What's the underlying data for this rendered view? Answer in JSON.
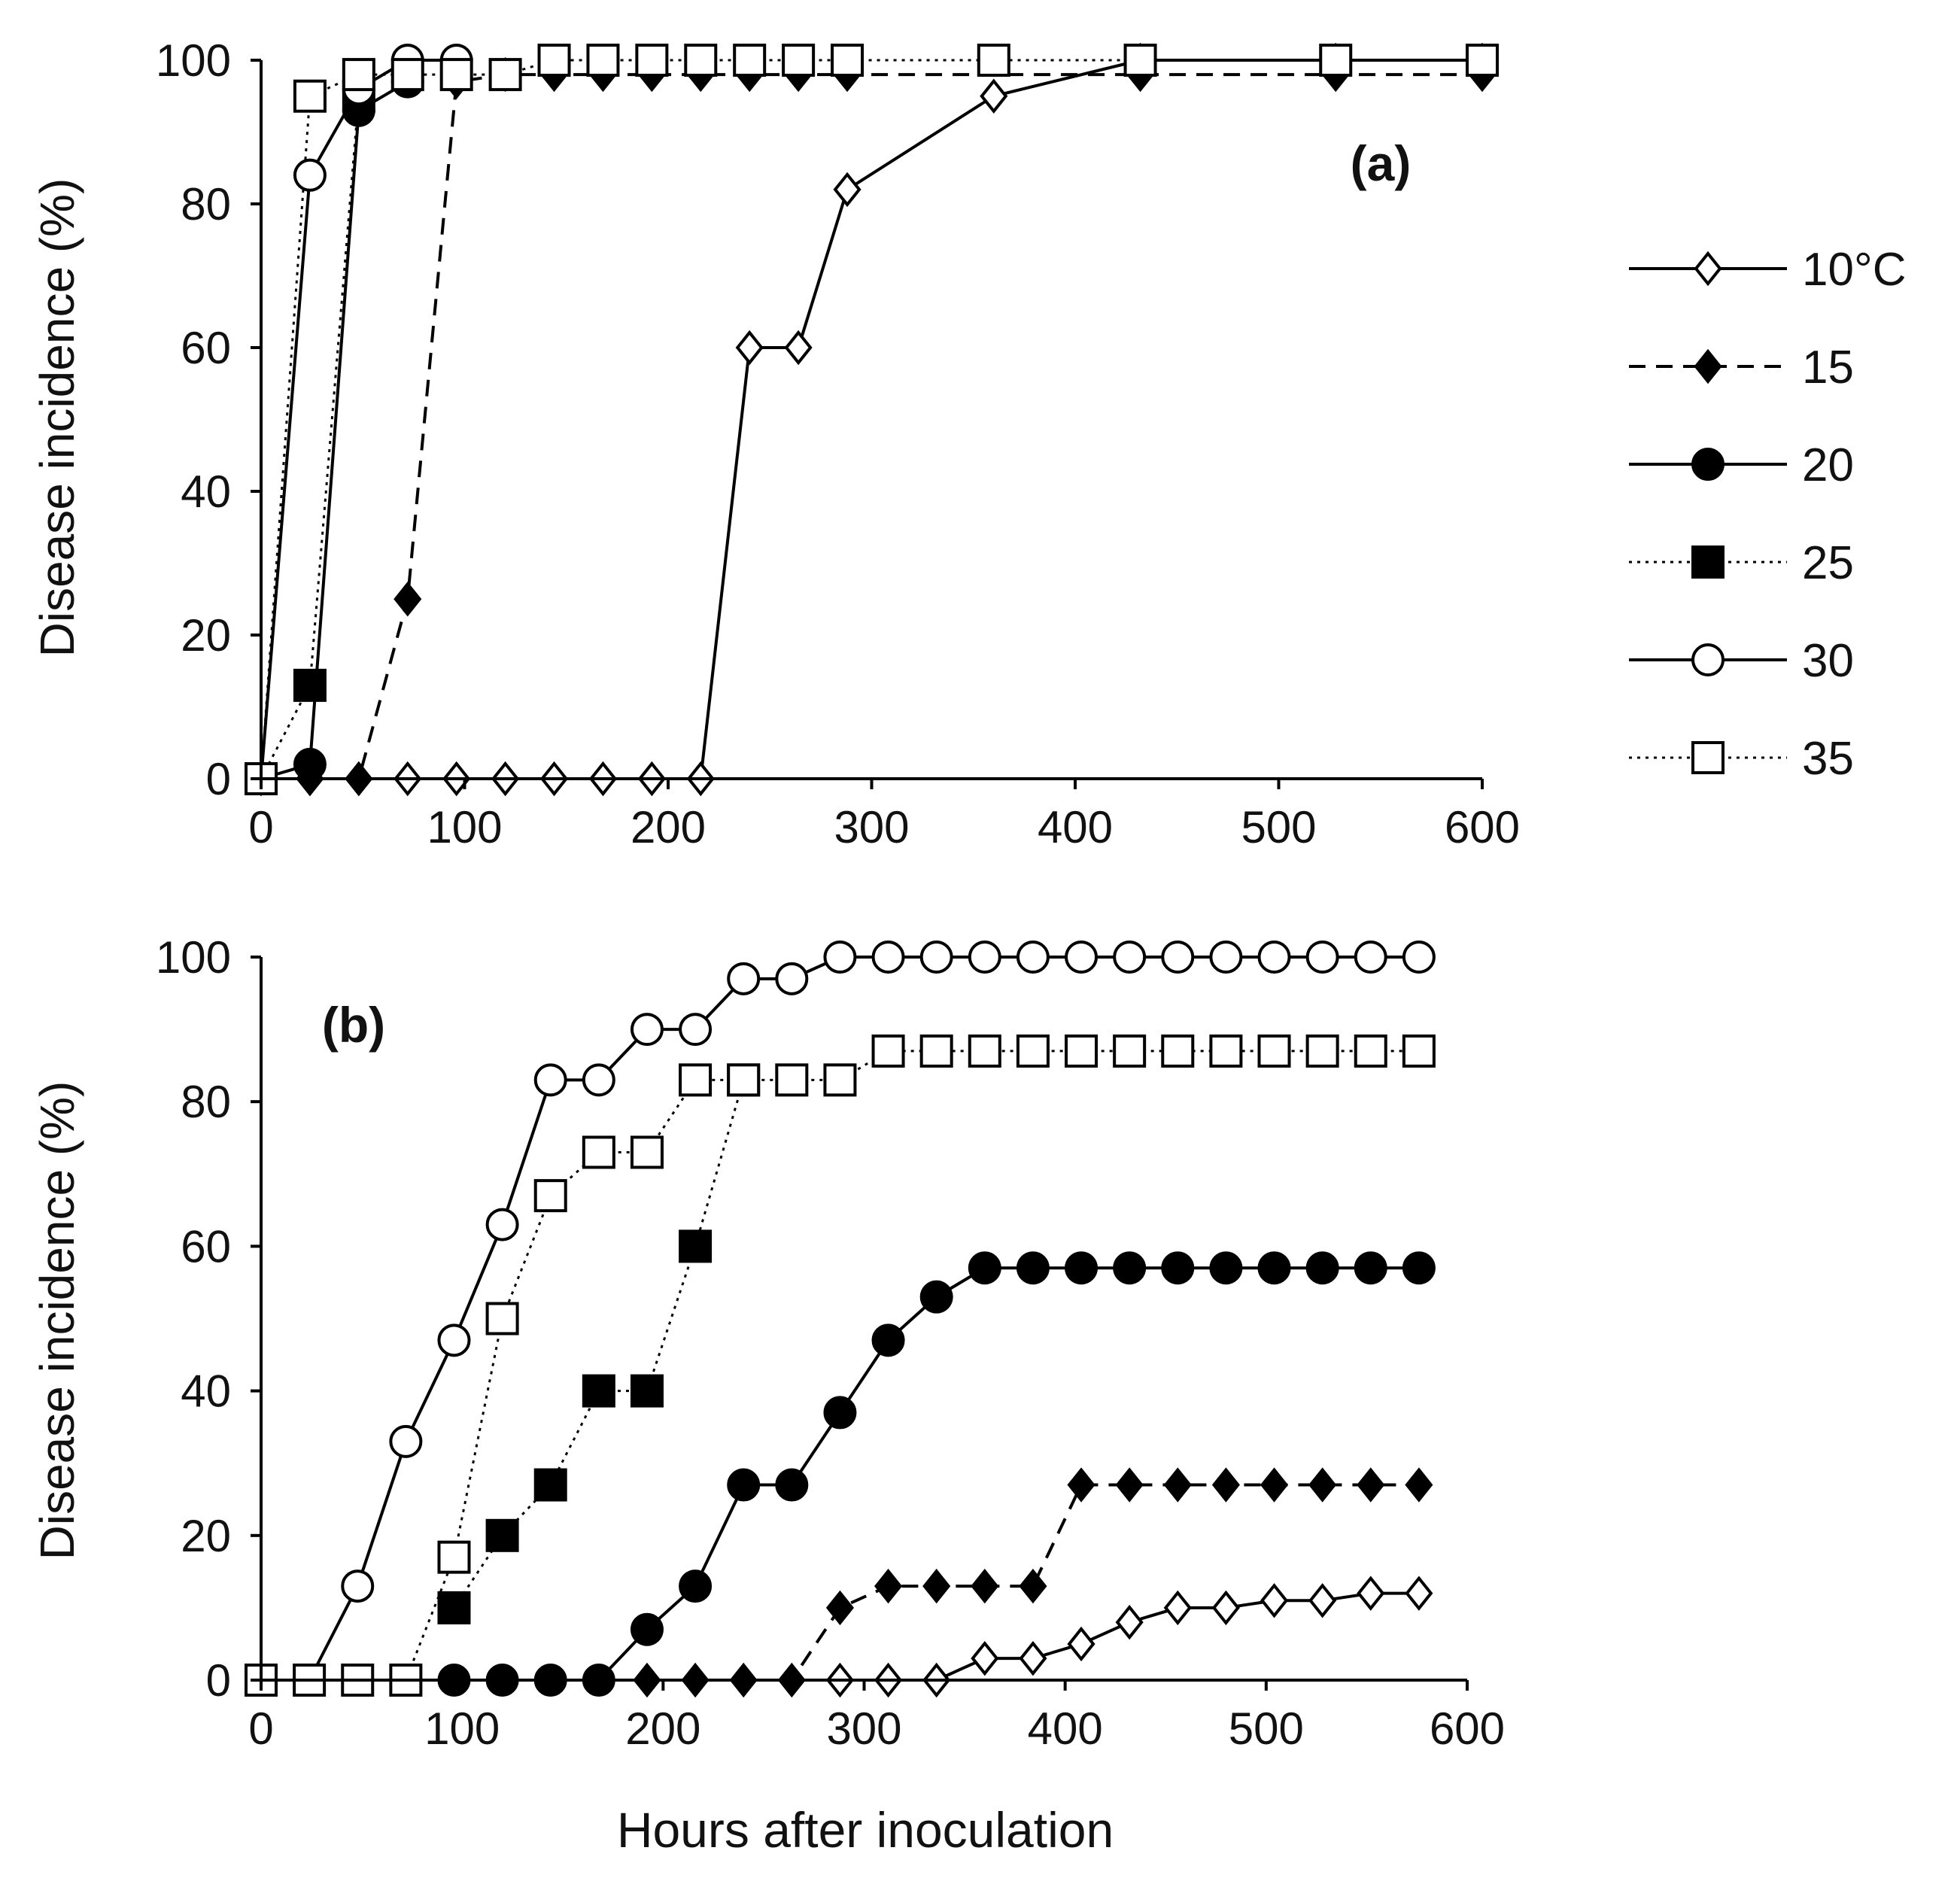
{
  "chart_data": [
    {
      "type": "line",
      "panel_label": "(a)",
      "xlabel": "",
      "ylabel": "Disease incidence (%)",
      "xlim": [
        0,
        600
      ],
      "ylim": [
        0,
        100
      ],
      "xticks": [
        0,
        100,
        200,
        300,
        400,
        500,
        600
      ],
      "yticks": [
        0,
        20,
        40,
        60,
        80,
        100
      ],
      "grid": false,
      "legend": "right",
      "series": [
        {
          "name": "10°C",
          "marker": "diamond-open",
          "line": "solid",
          "x": [
            0,
            24,
            48,
            72,
            96,
            120,
            144,
            168,
            192,
            216,
            240,
            264,
            288,
            360,
            432,
            528,
            600
          ],
          "y": [
            0,
            0,
            0,
            0,
            0,
            0,
            0,
            0,
            0,
            0,
            60,
            60,
            82,
            95,
            100,
            100,
            100
          ]
        },
        {
          "name": "15",
          "marker": "diamond-filled",
          "line": "dashed",
          "x": [
            0,
            24,
            48,
            72,
            96,
            120,
            144,
            168,
            192,
            216,
            240,
            264,
            288,
            432,
            528,
            600
          ],
          "y": [
            0,
            0,
            0,
            25,
            97,
            98,
            98,
            98,
            98,
            98,
            98,
            98,
            98,
            98,
            98,
            98
          ]
        },
        {
          "name": "20",
          "marker": "circle-filled",
          "line": "solid",
          "x": [
            0,
            24,
            48,
            72
          ],
          "y": [
            0,
            2,
            93,
            97
          ]
        },
        {
          "name": "25",
          "marker": "square-filled",
          "line": "dotted",
          "x": [
            0,
            24,
            48
          ],
          "y": [
            0,
            13,
            95
          ]
        },
        {
          "name": "30",
          "marker": "circle-open",
          "line": "solid",
          "x": [
            0,
            24,
            48,
            72,
            96
          ],
          "y": [
            0,
            84,
            96,
            100,
            100
          ]
        },
        {
          "name": "35",
          "marker": "square-open",
          "line": "dotted",
          "x": [
            0,
            24,
            48,
            72,
            96,
            120,
            144,
            168,
            192,
            216,
            240,
            264,
            288,
            360,
            432,
            528,
            600
          ],
          "y": [
            0,
            95,
            98,
            98,
            98,
            98,
            100,
            100,
            100,
            100,
            100,
            100,
            100,
            100,
            100,
            100,
            100
          ]
        }
      ]
    },
    {
      "type": "line",
      "panel_label": "(b)",
      "xlabel": "Hours after inoculation",
      "ylabel": "Disease incidence (%)",
      "xlim": [
        0,
        600
      ],
      "ylim": [
        0,
        100
      ],
      "xticks": [
        0,
        100,
        200,
        300,
        400,
        500,
        600
      ],
      "yticks": [
        0,
        20,
        40,
        60,
        80,
        100
      ],
      "grid": false,
      "series": [
        {
          "name": "10°C",
          "marker": "diamond-open",
          "line": "solid",
          "x": [
            288,
            312,
            336,
            360,
            384,
            408,
            432,
            456,
            480,
            504,
            528,
            552,
            576
          ],
          "y": [
            0,
            0,
            0,
            3,
            3,
            5,
            8,
            10,
            10,
            11,
            11,
            12,
            12
          ]
        },
        {
          "name": "15",
          "marker": "diamond-filled",
          "line": "dashed",
          "x": [
            192,
            216,
            240,
            264,
            288,
            312,
            336,
            360,
            384,
            408,
            432,
            456,
            480,
            504,
            528,
            552,
            576
          ],
          "y": [
            0,
            0,
            0,
            0,
            10,
            13,
            13,
            13,
            13,
            27,
            27,
            27,
            27,
            27,
            27,
            27,
            27
          ]
        },
        {
          "name": "20",
          "marker": "circle-filled",
          "line": "solid",
          "x": [
            96,
            120,
            144,
            168,
            192,
            216,
            240,
            264,
            288,
            312,
            336,
            360,
            384,
            408,
            432,
            456,
            480,
            504,
            528,
            552,
            576
          ],
          "y": [
            0,
            0,
            0,
            0,
            7,
            13,
            27,
            27,
            37,
            47,
            53,
            57,
            57,
            57,
            57,
            57,
            57,
            57,
            57,
            57,
            57
          ]
        },
        {
          "name": "25",
          "marker": "square-filled",
          "line": "dotted",
          "x": [
            96,
            120,
            144,
            168,
            192,
            216,
            240
          ],
          "y": [
            10,
            20,
            27,
            40,
            40,
            60,
            83
          ]
        },
        {
          "name": "30",
          "marker": "circle-open",
          "line": "solid",
          "x": [
            0,
            24,
            48,
            72,
            96,
            120,
            144,
            168,
            192,
            216,
            240,
            264,
            288,
            312,
            336,
            360,
            384,
            408,
            432,
            456,
            480,
            504,
            528,
            552,
            576
          ],
          "y": [
            0,
            0,
            13,
            33,
            47,
            63,
            83,
            83,
            90,
            90,
            97,
            97,
            100,
            100,
            100,
            100,
            100,
            100,
            100,
            100,
            100,
            100,
            100,
            100,
            100
          ]
        },
        {
          "name": "35",
          "marker": "square-open",
          "line": "dotted",
          "x": [
            0,
            24,
            48,
            72,
            96,
            120,
            144,
            168,
            192,
            216,
            240,
            264,
            288,
            312,
            336,
            360,
            384,
            408,
            432,
            456,
            480,
            504,
            528,
            552,
            576
          ],
          "y": [
            0,
            0,
            0,
            0,
            17,
            50,
            67,
            73,
            73,
            83,
            83,
            83,
            83,
            87,
            87,
            87,
            87,
            87,
            87,
            87,
            87,
            87,
            87,
            87,
            87
          ]
        }
      ]
    }
  ]
}
